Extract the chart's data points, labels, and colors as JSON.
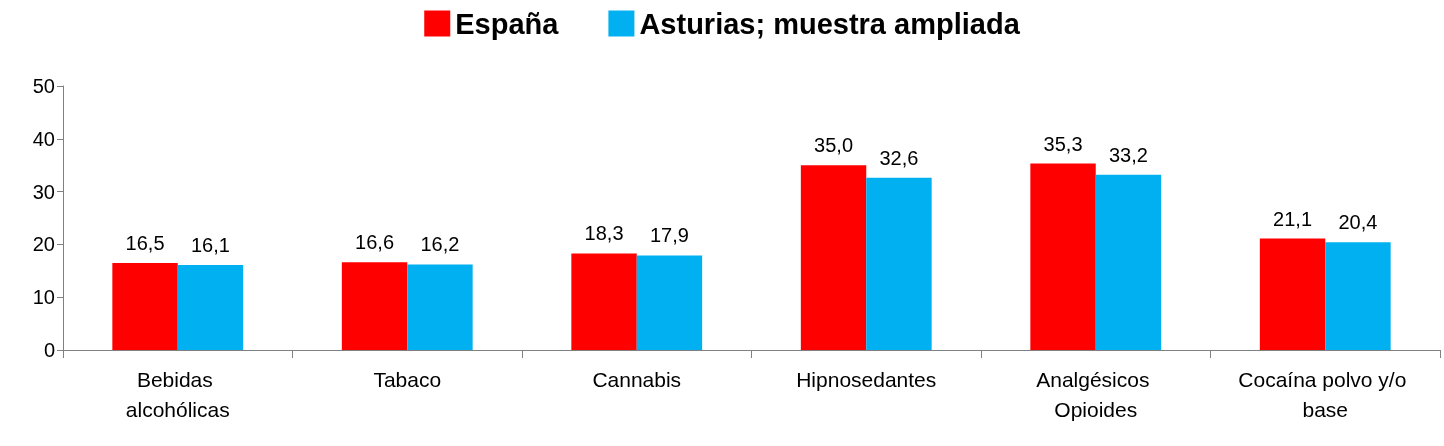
{
  "chart_data": {
    "type": "bar",
    "categories": [
      "Bebidas alcohólicas",
      "Tabaco",
      "Cannabis",
      "Hipnosedantes",
      "Analgésicos Opioides",
      "Cocaína polvo y/o base"
    ],
    "series": [
      {
        "name": "España",
        "color": "#ff0000",
        "values": [
          16.5,
          16.6,
          18.3,
          35.0,
          35.3,
          21.1
        ],
        "value_labels": [
          "16,5",
          "16,6",
          "18,3",
          "35,0",
          "35,3",
          "21,1"
        ]
      },
      {
        "name": "Asturias; muestra ampliada",
        "color": "#00b0f0",
        "values": [
          16.1,
          16.2,
          17.9,
          32.6,
          33.2,
          20.4
        ],
        "value_labels": [
          "16,1",
          "16,2",
          "17,9",
          "32,6",
          "33,2",
          "20,4"
        ]
      }
    ],
    "ylim": [
      0,
      50
    ],
    "yticks": [
      0,
      10,
      20,
      30,
      40,
      50
    ],
    "grid": false,
    "legend": "top"
  }
}
